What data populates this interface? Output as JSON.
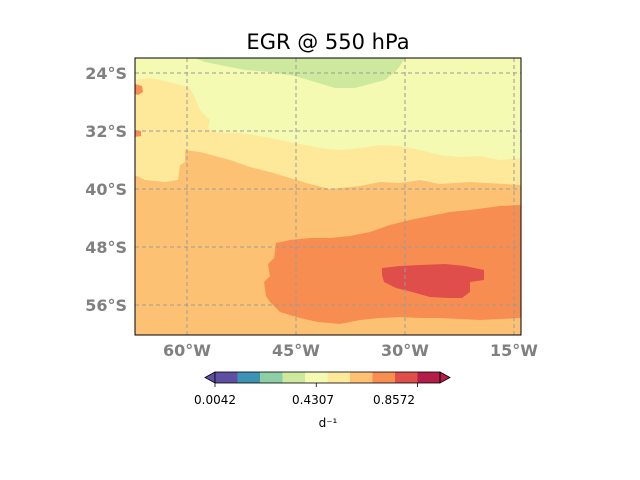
{
  "chart_data": {
    "type": "contour-map",
    "title": "EGR  @ 550 hPa",
    "lat_ticks": [
      "24°S",
      "32°S",
      "40°S",
      "48°S",
      "56°S"
    ],
    "lon_ticks": [
      "60°W",
      "45°W",
      "30°W",
      "15°W"
    ],
    "lon_range": [
      -67,
      -14
    ],
    "lat_range": [
      -60,
      -22
    ],
    "colorbar": {
      "tick_labels": [
        "0.0042",
        "0.4307",
        "0.8572"
      ],
      "unit": "d⁻¹",
      "levels": [
        0.0042,
        0.099,
        0.1938,
        0.2886,
        0.3833,
        0.4781,
        0.5729,
        0.6677,
        0.7624,
        0.8572
      ],
      "colors": [
        "#5e4fa2",
        "#3d93b5",
        "#8ccfa4",
        "#cde99d",
        "#f5fab3",
        "#fee99a",
        "#fdc174",
        "#f88d52",
        "#df4e4b",
        "#b31d48"
      ],
      "extend": "both"
    },
    "regions": [
      {
        "level_range": "0.5729-0.6677",
        "description": "background south of ~40°S"
      },
      {
        "level_range": "0.4781-0.5729",
        "description": "band near 35°S"
      },
      {
        "level_range": "0.3833-0.4781",
        "description": "band 24°S-32°S"
      },
      {
        "level_range": "0.2886-0.3833",
        "description": "northern patch near 22°S, 45°W-35°W"
      },
      {
        "level_range": "0.6677-0.7624",
        "description": "south-east region 45°S-57°S"
      },
      {
        "level_range": "0.7624-0.8572",
        "description": "core near 52°S, 30°W"
      }
    ]
  }
}
